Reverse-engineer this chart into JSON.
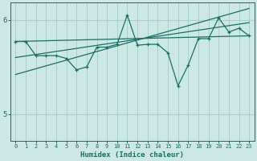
{
  "xlabel": "Humidex (Indice chaleur)",
  "bg_color": "#cce8e4",
  "line_color": "#1a6e64",
  "grid_color": "#aad0cc",
  "xlim": [
    -0.5,
    23.5
  ],
  "ylim": [
    4.72,
    6.18
  ],
  "yticks": [
    5,
    6
  ],
  "xticks": [
    0,
    1,
    2,
    3,
    4,
    5,
    6,
    7,
    8,
    9,
    10,
    11,
    12,
    13,
    14,
    15,
    16,
    17,
    18,
    19,
    20,
    21,
    22,
    23
  ],
  "data_x": [
    0,
    1,
    2,
    3,
    4,
    5,
    6,
    7,
    8,
    9,
    10,
    11,
    12,
    13,
    14,
    15,
    16,
    17,
    18,
    19,
    20,
    21,
    22,
    23
  ],
  "data_y": [
    5.77,
    5.77,
    5.62,
    5.62,
    5.62,
    5.59,
    5.47,
    5.5,
    5.71,
    5.71,
    5.74,
    6.05,
    5.73,
    5.74,
    5.74,
    5.65,
    5.3,
    5.52,
    5.8,
    5.8,
    6.02,
    5.87,
    5.91,
    5.83
  ],
  "trend1_x": [
    0,
    23
  ],
  "trend1_y": [
    5.77,
    5.83
  ],
  "trend2_x": [
    0,
    23
  ],
  "trend2_y": [
    5.6,
    5.97
  ],
  "trend3_x": [
    0,
    23
  ],
  "trend3_y": [
    5.42,
    6.12
  ]
}
